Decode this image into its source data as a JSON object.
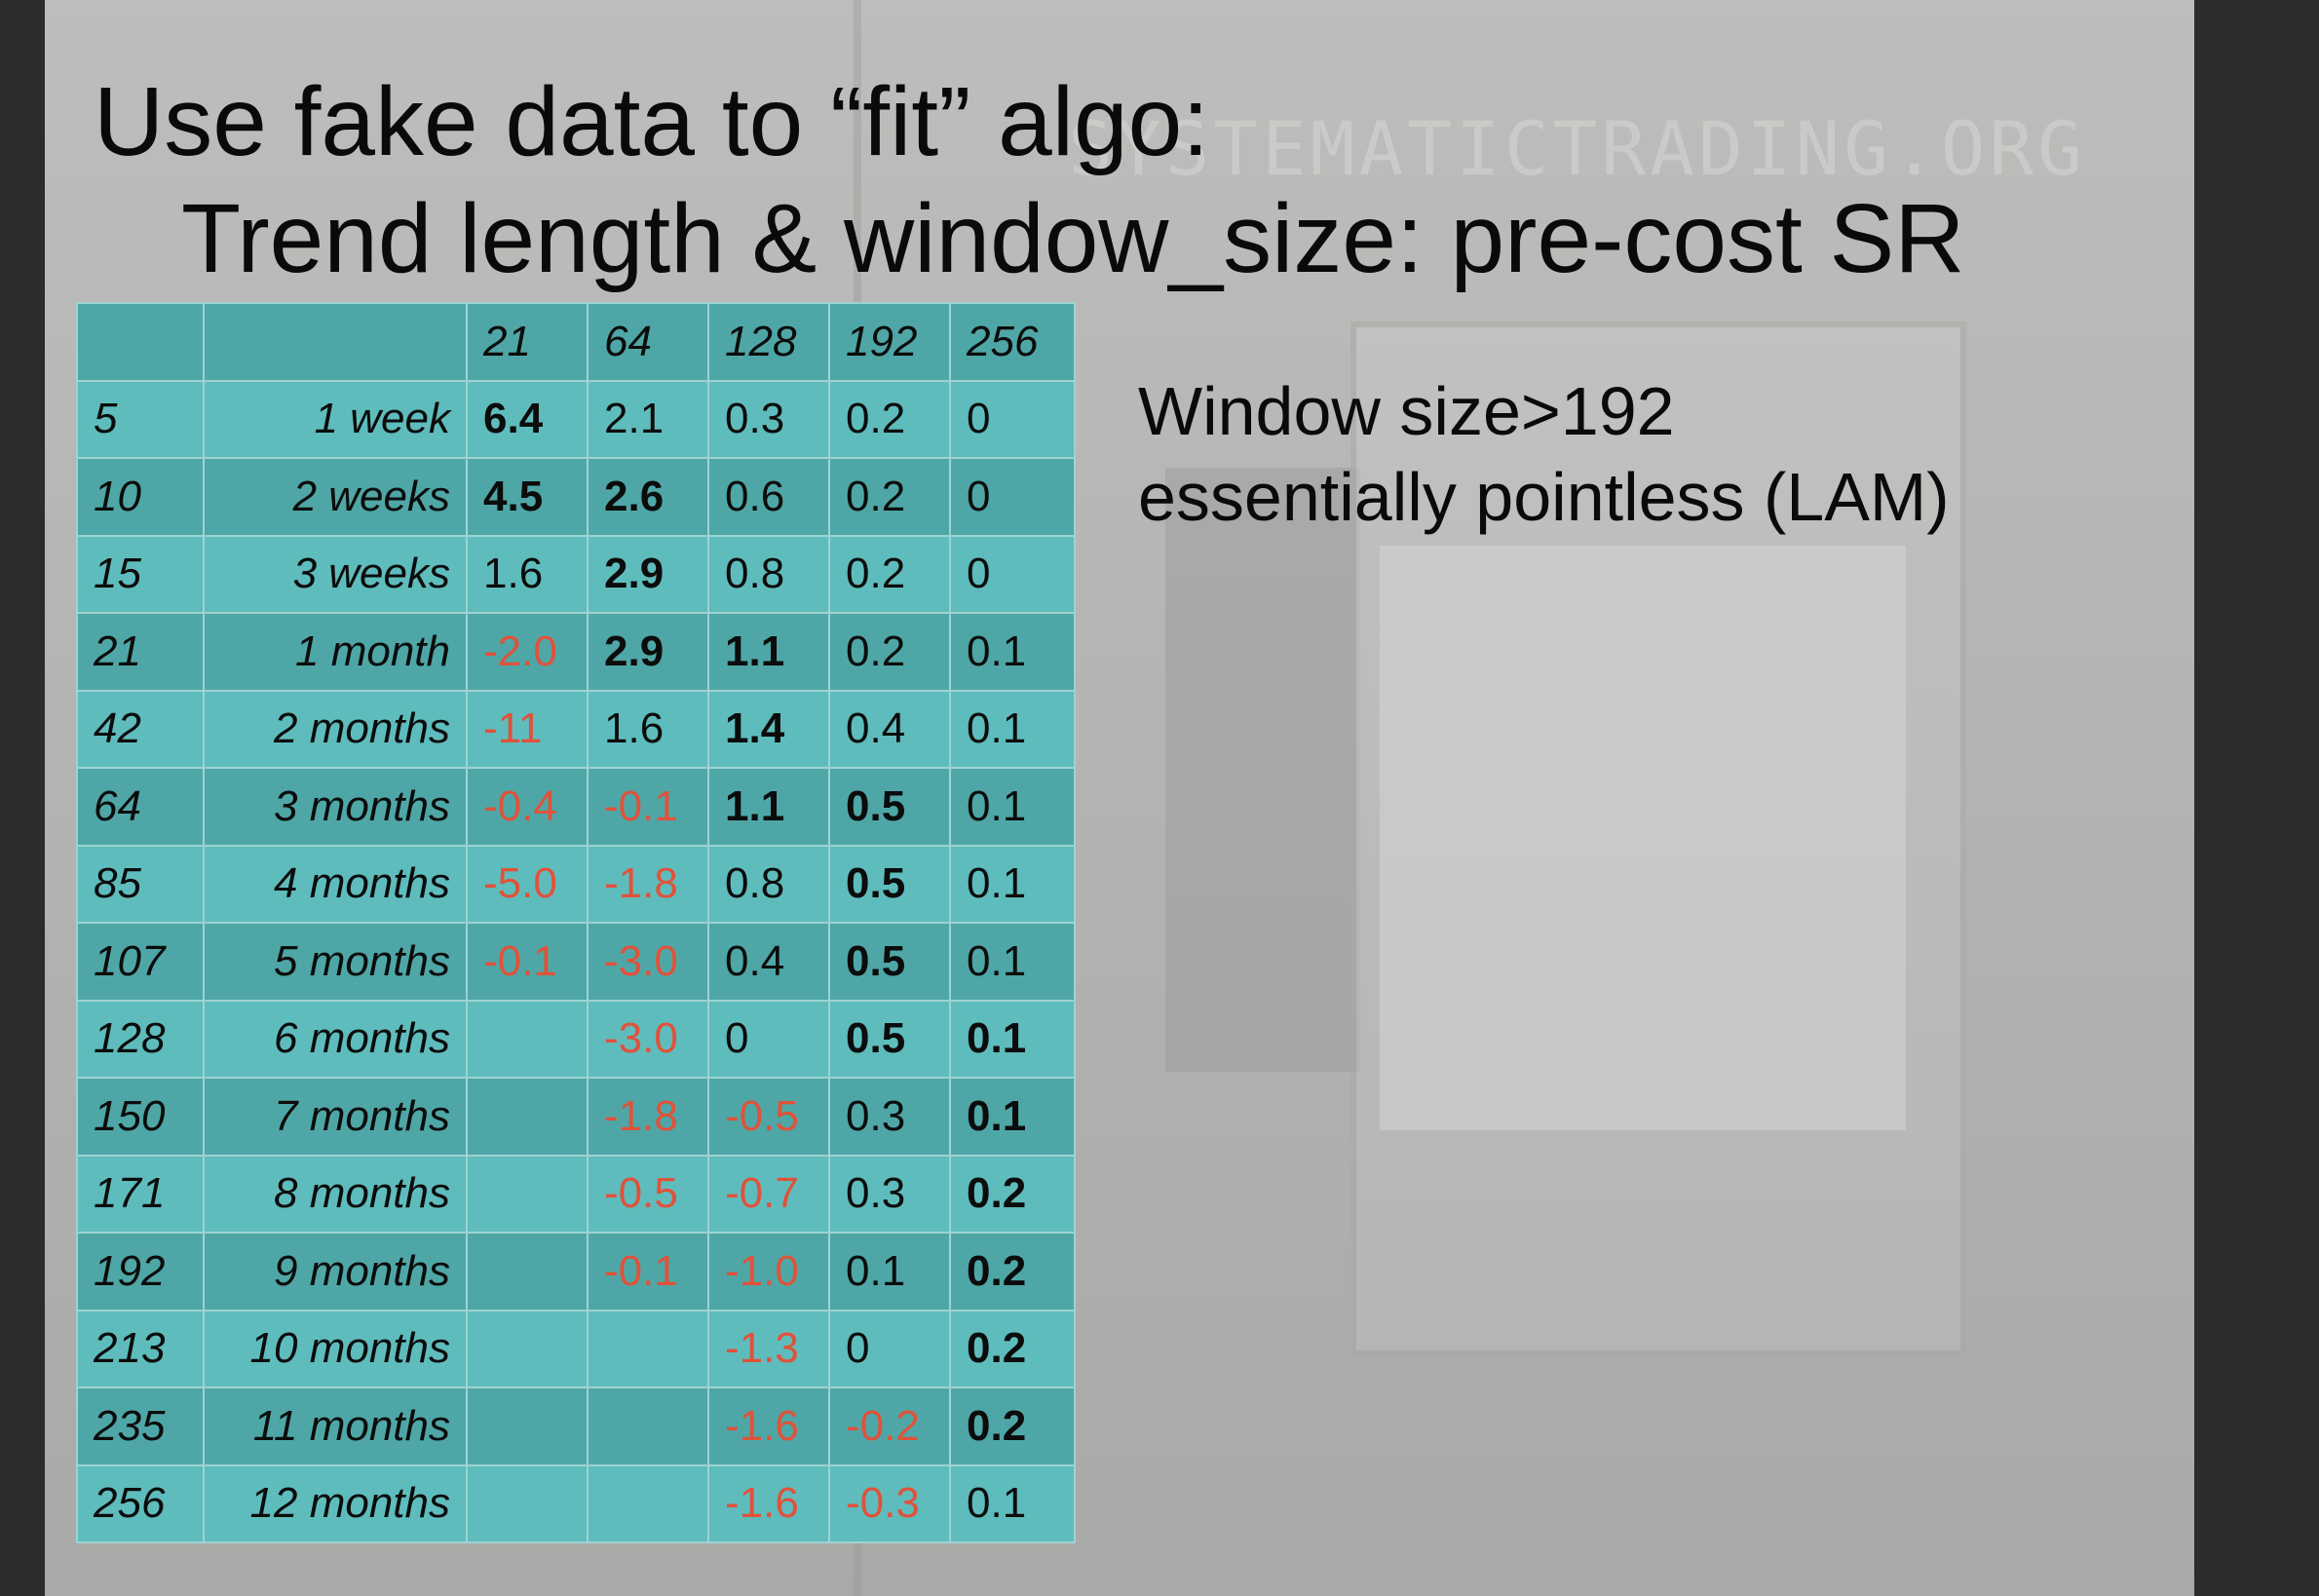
{
  "slide": {
    "watermark": "SYSTEMATICTRADING.ORG",
    "title_line1": "Use fake data to “fit” algo:",
    "title_line2": "Trend length & window_size: pre-cost SR",
    "note_line1": "Window size>192",
    "note_line2": "essentially pointless (LAM)"
  },
  "table": {
    "columns": [
      "21",
      "64",
      "128",
      "192",
      "256"
    ],
    "rows": [
      {
        "trend": "5",
        "label": "1 week",
        "values": [
          "6.4",
          "2.1",
          "0.3",
          "0.2",
          "0"
        ]
      },
      {
        "trend": "10",
        "label": "2 weeks",
        "values": [
          "4.5",
          "2.6",
          "0.6",
          "0.2",
          "0"
        ]
      },
      {
        "trend": "15",
        "label": "3 weeks",
        "values": [
          "1.6",
          "2.9",
          "0.8",
          "0.2",
          "0"
        ]
      },
      {
        "trend": "21",
        "label": "1 month",
        "values": [
          "-2.0",
          "2.9",
          "1.1",
          "0.2",
          "0.1"
        ]
      },
      {
        "trend": "42",
        "label": "2 months",
        "values": [
          "-11",
          "1.6",
          "1.4",
          "0.4",
          "0.1"
        ]
      },
      {
        "trend": "64",
        "label": "3 months",
        "values": [
          "-0.4",
          "-0.1",
          "1.1",
          "0.5",
          "0.1"
        ]
      },
      {
        "trend": "85",
        "label": "4 months",
        "values": [
          "-5.0",
          "-1.8",
          "0.8",
          "0.5",
          "0.1"
        ]
      },
      {
        "trend": "107",
        "label": "5 months",
        "values": [
          "-0.1",
          "-3.0",
          "0.4",
          "0.5",
          "0.1"
        ]
      },
      {
        "trend": "128",
        "label": "6 months",
        "values": [
          "",
          "-3.0",
          "0",
          "0.5",
          "0.1"
        ]
      },
      {
        "trend": "150",
        "label": "7 months",
        "values": [
          "",
          "-1.8",
          "-0.5",
          "0.3",
          "0.1"
        ]
      },
      {
        "trend": "171",
        "label": "8 months",
        "values": [
          "",
          "-0.5",
          "-0.7",
          "0.3",
          "0.2"
        ]
      },
      {
        "trend": "192",
        "label": "9 months",
        "values": [
          "",
          "-0.1",
          "-1.0",
          "0.1",
          "0.2"
        ]
      },
      {
        "trend": "213",
        "label": "10 months",
        "values": [
          "",
          "",
          "-1.3",
          "0",
          "0.2"
        ]
      },
      {
        "trend": "235",
        "label": "11 months",
        "values": [
          "",
          "",
          "-1.6",
          "-0.2",
          "0.2"
        ]
      },
      {
        "trend": "256",
        "label": "12 months",
        "values": [
          "",
          "",
          "-1.6",
          "-0.3",
          "0.1"
        ]
      }
    ],
    "bold_cells": [
      [
        0,
        0
      ],
      [
        1,
        0
      ],
      [
        1,
        1
      ],
      [
        2,
        1
      ],
      [
        3,
        1
      ],
      [
        3,
        2
      ],
      [
        4,
        2
      ],
      [
        5,
        2
      ],
      [
        5,
        3
      ],
      [
        6,
        3
      ],
      [
        7,
        3
      ],
      [
        8,
        3
      ],
      [
        8,
        4
      ],
      [
        9,
        4
      ],
      [
        10,
        4
      ],
      [
        11,
        4
      ],
      [
        12,
        4
      ],
      [
        13,
        4
      ]
    ],
    "colors": {
      "negative": "#e0523a",
      "row_dark": "#4ea7a6",
      "row_light": "#5fbcbc",
      "grid_line": "#9fd2d2"
    }
  }
}
